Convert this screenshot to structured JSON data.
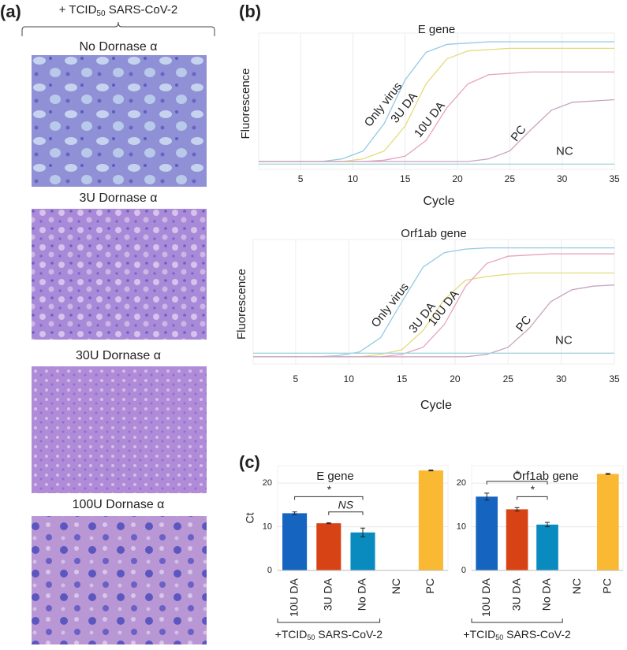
{
  "panel_labels": [
    "(a)",
    "(b)",
    "(c)"
  ],
  "panel_a": {
    "header": {
      "prefix": "+ TCID",
      "sub": "50",
      "suffix": " SARS-CoV-2"
    },
    "captions": [
      "No Dornase α",
      "3U Dornase α",
      "30U Dornase α",
      "100U Dornase α"
    ]
  },
  "chart_data": [
    {
      "type": "line",
      "title": "E gene",
      "x_label": "Cycle",
      "y_label": "Fluorescence",
      "x": [
        1,
        3,
        5,
        7,
        9,
        11,
        13,
        15,
        17,
        19,
        21,
        23,
        25,
        27,
        29,
        31,
        33,
        35
      ],
      "xlim": [
        1,
        35
      ],
      "xticks": [
        5,
        10,
        15,
        20,
        25,
        30,
        35
      ],
      "ylim": [
        0,
        100
      ],
      "grid": true,
      "series": [
        {
          "name": "Only virus",
          "color": "#93c9e3",
          "values": [
            6,
            6,
            6,
            6,
            8,
            14,
            35,
            68,
            89,
            95,
            96,
            97,
            97,
            97,
            97,
            97,
            97,
            97
          ]
        },
        {
          "name": "3U DA",
          "color": "#e3dc7a",
          "values": [
            6,
            6,
            6,
            6,
            6,
            8,
            14,
            33,
            65,
            84,
            90,
            91,
            92,
            92,
            92,
            92,
            92,
            92
          ]
        },
        {
          "name": "10U DA",
          "color": "#e7a3bd",
          "values": [
            6,
            6,
            6,
            6,
            6,
            6,
            7,
            10,
            22,
            47,
            65,
            72,
            73,
            74,
            74,
            74,
            74,
            74
          ]
        },
        {
          "name": "PC",
          "color": "#c7a4bf",
          "values": [
            6,
            6,
            6,
            6,
            6,
            6,
            6,
            6,
            6,
            6,
            6,
            8,
            14,
            30,
            45,
            51,
            52,
            53
          ]
        },
        {
          "name": "NC",
          "color": "#a9d6de",
          "values": [
            4,
            4,
            4,
            4,
            4,
            4,
            4,
            4,
            4,
            4,
            4,
            4,
            4,
            4,
            4,
            4,
            4,
            4
          ]
        }
      ]
    },
    {
      "type": "line",
      "title": "Orf1ab gene",
      "x_label": "Cycle",
      "y_label": "Fluorescence",
      "x": [
        1,
        3,
        5,
        7,
        9,
        11,
        13,
        15,
        17,
        19,
        21,
        23,
        25,
        27,
        29,
        31,
        33,
        35
      ],
      "xlim": [
        1,
        35
      ],
      "xticks": [
        5,
        10,
        15,
        20,
        25,
        30,
        35
      ],
      "ylim": [
        0,
        100
      ],
      "grid": true,
      "series": [
        {
          "name": "Only virus",
          "color": "#93c9e3",
          "values": [
            6,
            6,
            6,
            6,
            7,
            10,
            22,
            52,
            81,
            93,
            96,
            97,
            97,
            97,
            97,
            97,
            97,
            97
          ]
        },
        {
          "name": "3U DA",
          "color": "#e3dc7a",
          "values": [
            6,
            6,
            6,
            6,
            6,
            6,
            8,
            12,
            28,
            54,
            70,
            73,
            75,
            76,
            76,
            76,
            76,
            76
          ]
        },
        {
          "name": "10U DA",
          "color": "#e7a3bd",
          "values": [
            6,
            6,
            6,
            6,
            6,
            6,
            6,
            8,
            14,
            33,
            65,
            84,
            90,
            91,
            92,
            92,
            92,
            92
          ]
        },
        {
          "name": "PC",
          "color": "#c7a4bf",
          "values": [
            6,
            6,
            6,
            6,
            6,
            6,
            6,
            6,
            6,
            6,
            6,
            8,
            14,
            30,
            52,
            62,
            65,
            66
          ]
        },
        {
          "name": "NC",
          "color": "#a9d6de",
          "values": [
            9,
            9,
            9,
            9,
            9,
            9,
            9,
            9,
            9,
            9,
            9,
            9,
            9,
            9,
            9,
            9,
            9,
            9
          ]
        }
      ]
    },
    {
      "type": "bar",
      "title": "E gene",
      "y_label": "Ct",
      "categories": [
        "10U DA",
        "3U DA",
        "No DA",
        "NC",
        "PC"
      ],
      "values": [
        13.1,
        10.8,
        8.7,
        0.1,
        22.9
      ],
      "errors": [
        0.3,
        0.1,
        1.0,
        0,
        0.1
      ],
      "colors": [
        "#1565c0",
        "#d84315",
        "#0a8bc0",
        "#c8c8c8",
        "#f9b933"
      ],
      "ylim": [
        0,
        24
      ],
      "yticks": [
        0,
        10,
        20
      ],
      "grid": true,
      "brackets": [
        {
          "between": [
            "10U DA",
            "No DA"
          ],
          "label": "*"
        },
        {
          "between": [
            "3U DA",
            "No DA"
          ],
          "label": "NS"
        }
      ],
      "group_label": {
        "prefix": "+TCID",
        "sub": "50",
        "suffix": " SARS-CoV-2"
      },
      "group_span": [
        "10U DA",
        "No DA"
      ]
    },
    {
      "type": "bar",
      "title": "Orf1ab gene",
      "y_label": "Ct",
      "categories": [
        "10U DA",
        "3U DA",
        "No DA",
        "NC",
        "PC"
      ],
      "values": [
        16.9,
        14.0,
        10.5,
        0.1,
        22.1
      ],
      "errors": [
        0.8,
        0.4,
        0.5,
        0,
        0.1
      ],
      "colors": [
        "#1565c0",
        "#d84315",
        "#0a8bc0",
        "#c8c8c8",
        "#f9b933"
      ],
      "ylim": [
        0,
        24
      ],
      "yticks": [
        0,
        10,
        20
      ],
      "grid": true,
      "brackets": [
        {
          "between": [
            "10U DA",
            "No DA"
          ],
          "label": "*"
        },
        {
          "between": [
            "3U DA",
            "No DA"
          ],
          "label": "*"
        }
      ],
      "group_label": {
        "prefix": "+TCID",
        "sub": "50",
        "suffix": " SARS-CoV-2"
      },
      "group_span": [
        "10U DA",
        "No DA"
      ]
    }
  ]
}
